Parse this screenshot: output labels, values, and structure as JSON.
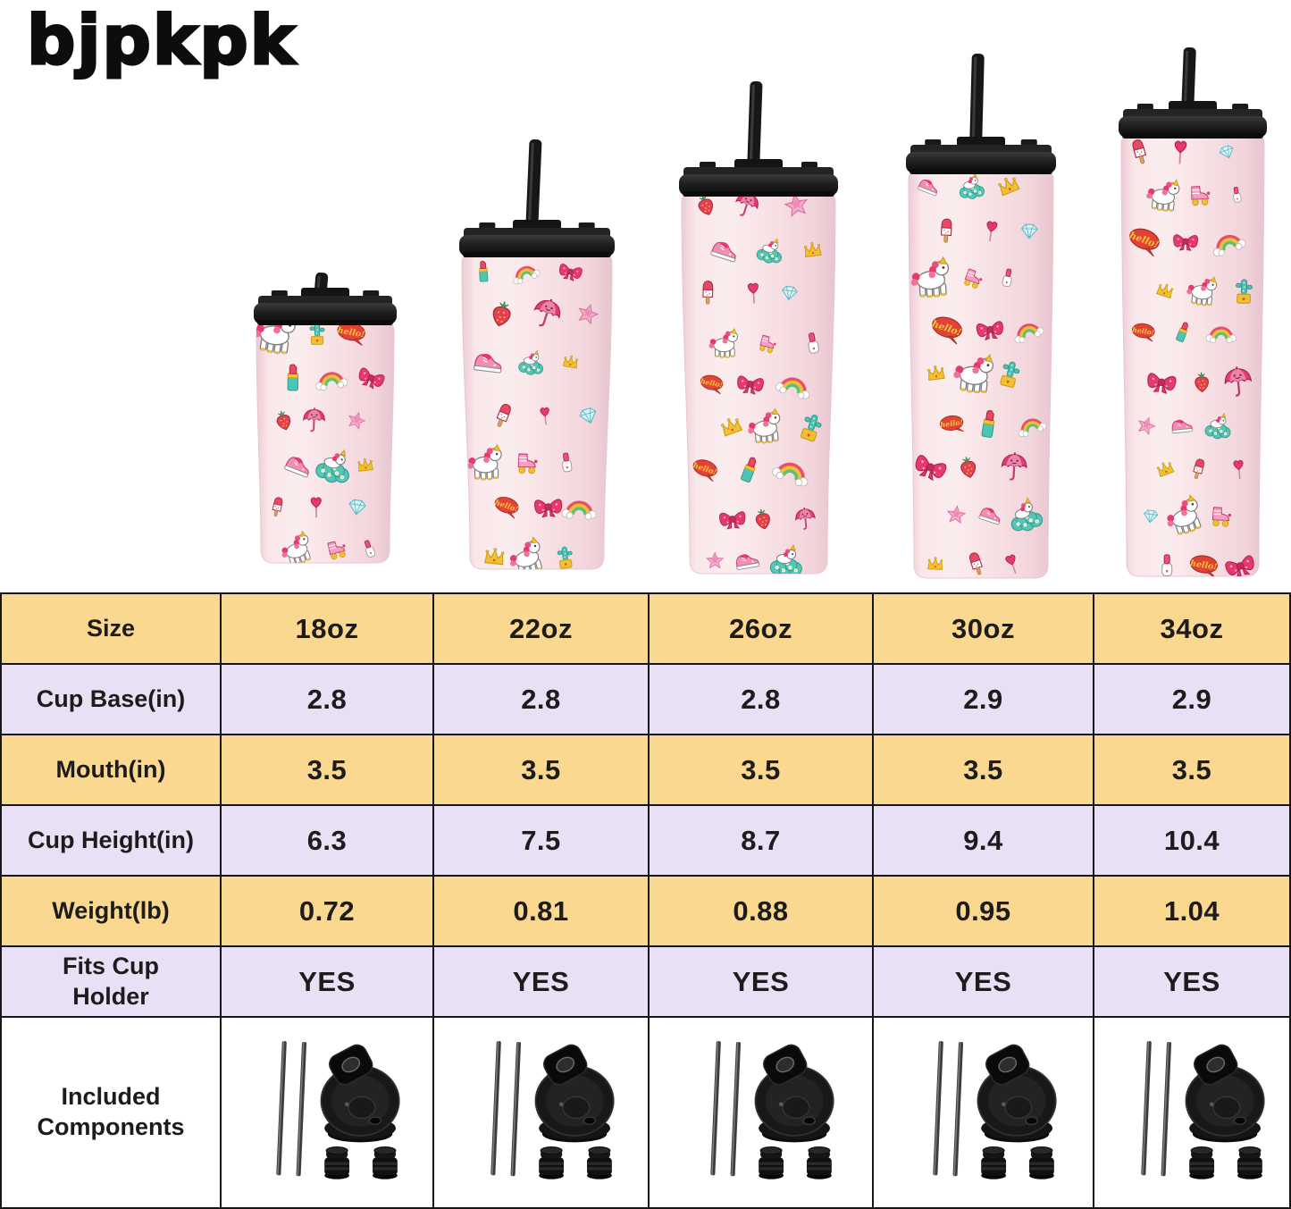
{
  "brand": {
    "logo_text": "bjpkpk"
  },
  "hero": {
    "description": "Five light-pink insulated tumblers with black lids and black straws, arranged smallest to largest, covered in a kawaii sticker pattern",
    "tumbler_sizes": [
      "18oz",
      "22oz",
      "26oz",
      "30oz",
      "34oz"
    ],
    "bubble_text": "hello!",
    "pattern_motifs": [
      "unicorn",
      "unicorn-on-cloud",
      "rainbow",
      "bow",
      "strawberry",
      "lipstick",
      "hello-speech-bubble",
      "umbrella",
      "cactus-in-mug",
      "star",
      "crown",
      "popsicle",
      "sneaker",
      "roller-skate",
      "diamond",
      "heart-lollipop",
      "nail-polish"
    ],
    "cup_color": "#F8E3E6",
    "lid_color": "#1B1B1B"
  },
  "table": {
    "rows": [
      {
        "label": "Size",
        "values": [
          "18oz",
          "22oz",
          "26oz",
          "30oz",
          "34oz"
        ]
      },
      {
        "label": "Cup Base(in)",
        "values": [
          "2.8",
          "2.8",
          "2.8",
          "2.9",
          "2.9"
        ]
      },
      {
        "label": "Mouth(in)",
        "values": [
          "3.5",
          "3.5",
          "3.5",
          "3.5",
          "3.5"
        ]
      },
      {
        "label": "Cup Height(in)",
        "values": [
          "6.3",
          "7.5",
          "8.7",
          "9.4",
          "10.4"
        ]
      },
      {
        "label": "Weight(lb)",
        "values": [
          "0.72",
          "0.81",
          "0.88",
          "0.95",
          "1.04"
        ]
      },
      {
        "label": "Fits Cup Holder",
        "values": [
          "YES",
          "YES",
          "YES",
          "YES",
          "YES"
        ]
      }
    ],
    "components_row": {
      "label": "Included Components",
      "items": [
        "two metal straws",
        "flip-top lid",
        "two straw stoppers"
      ]
    },
    "colors": {
      "row_yellow": "#FBD88F",
      "row_lavender": "#E9E0F5",
      "border": "#161616",
      "text": "#1C1C1C"
    }
  }
}
